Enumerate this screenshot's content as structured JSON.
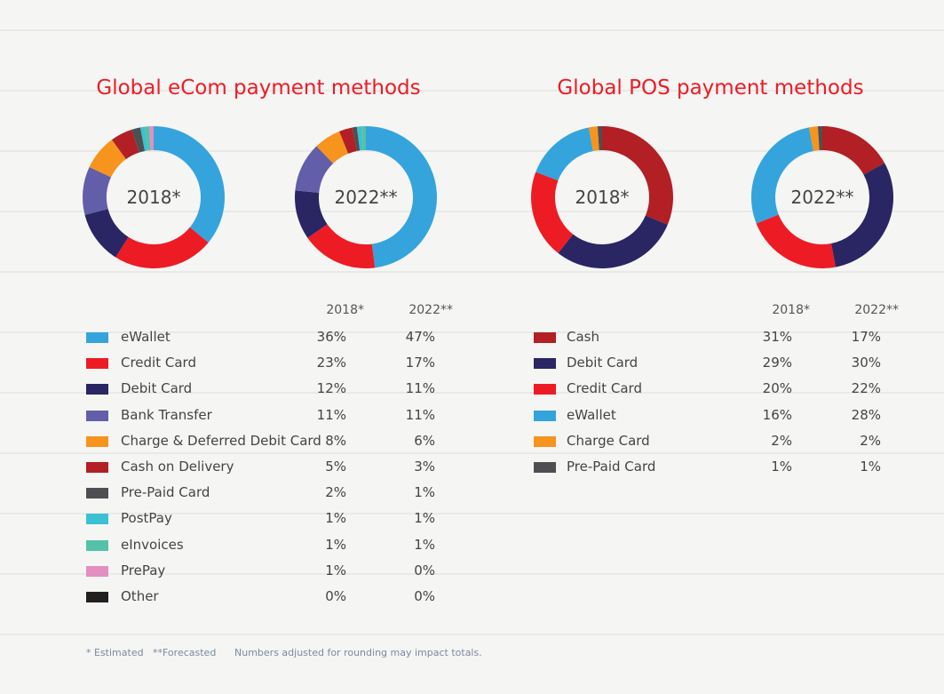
{
  "chart_data": [
    {
      "type": "pie",
      "title": "Global eCom payment methods",
      "columns": [
        "2018*",
        "2022**"
      ],
      "categories": [
        "eWallet",
        "Credit Card",
        "Debit Card",
        "Bank Transfer",
        "Charge & Deferred Debit Card",
        "Cash on Delivery",
        "Pre-Paid Card",
        "PostPay",
        "eInvoices",
        "PrePay",
        "Other"
      ],
      "colors": [
        "#35a4dc",
        "#ed1c24",
        "#2a2563",
        "#635ea9",
        "#f7941d",
        "#b21f24",
        "#4d4f53",
        "#3bc1d1",
        "#55c1a8",
        "#e38fc0",
        "#231f20"
      ],
      "series": [
        {
          "name": "2018*",
          "values": [
            36,
            23,
            12,
            11,
            8,
            5,
            2,
            1,
            1,
            1,
            0
          ]
        },
        {
          "name": "2022**",
          "values": [
            47,
            17,
            11,
            11,
            6,
            3,
            1,
            1,
            1,
            0,
            0
          ]
        }
      ]
    },
    {
      "type": "pie",
      "title": "Global POS payment methods",
      "columns": [
        "2018*",
        "2022**"
      ],
      "categories": [
        "Cash",
        "Debit Card",
        "Credit Card",
        "eWallet",
        "Charge Card",
        "Pre-Paid Card"
      ],
      "colors": [
        "#b21f24",
        "#2a2563",
        "#ed1c24",
        "#35a4dc",
        "#f7941d",
        "#4d4f53"
      ],
      "series": [
        {
          "name": "2018*",
          "values": [
            31,
            29,
            20,
            16,
            2,
            1
          ]
        },
        {
          "name": "2022**",
          "values": [
            17,
            30,
            22,
            28,
            2,
            1
          ]
        }
      ]
    }
  ],
  "footnotes": {
    "estimated": "* Estimated",
    "forecasted": "**Forecasted",
    "rounding": "Numbers adjusted for rounding may impact totals."
  }
}
